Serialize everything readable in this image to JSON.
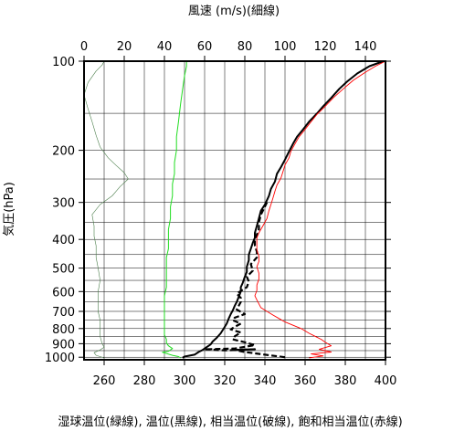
{
  "chart_data": {
    "type": "line",
    "title": "",
    "top_axis_label": "風速 (m/s)(細線)",
    "left_axis_label": "気圧(hPa)",
    "bottom_axis_label": "湿球温位(緑線), 温位(黒線), 相当温位(破線), 飽和相当温位(赤線)",
    "top_axis": {
      "range": [
        0,
        150
      ],
      "ticks": [
        0,
        20,
        40,
        60,
        80,
        100,
        120,
        140
      ]
    },
    "bottom_axis": {
      "range": [
        250,
        400
      ],
      "ticks": [
        260,
        280,
        300,
        320,
        340,
        360,
        380,
        400
      ]
    },
    "y_axis": {
      "scale": "log",
      "range": [
        1020,
        100
      ],
      "ticks": [
        100,
        200,
        300,
        400,
        500,
        600,
        700,
        800,
        900,
        1000
      ],
      "gridlines": [
        100,
        150,
        200,
        250,
        300,
        350,
        400,
        450,
        500,
        550,
        600,
        650,
        700,
        750,
        800,
        850,
        900,
        950,
        1000
      ]
    },
    "grid": true,
    "series": [
      {
        "key": "wind_speed",
        "axis": "top",
        "color": "#4a7d4a",
        "style": "solid",
        "width": 0.6,
        "points": [
          [
            10,
            1005
          ],
          [
            6,
            985
          ],
          [
            5,
            965
          ],
          [
            8,
            945
          ],
          [
            10,
            925
          ],
          [
            9,
            900
          ],
          [
            8,
            850
          ],
          [
            8,
            800
          ],
          [
            8,
            750
          ],
          [
            7,
            700
          ],
          [
            7,
            650
          ],
          [
            7,
            600
          ],
          [
            8,
            550
          ],
          [
            7,
            500
          ],
          [
            6,
            460
          ],
          [
            6,
            420
          ],
          [
            5,
            390
          ],
          [
            5,
            360
          ],
          [
            4,
            330
          ],
          [
            8,
            305
          ],
          [
            14,
            285
          ],
          [
            18,
            265
          ],
          [
            22,
            250
          ],
          [
            20,
            238
          ],
          [
            16,
            225
          ],
          [
            12,
            212
          ],
          [
            8,
            195
          ],
          [
            6,
            178
          ],
          [
            4,
            160
          ],
          [
            2,
            145
          ],
          [
            0,
            130
          ],
          [
            2,
            118
          ],
          [
            6,
            108
          ],
          [
            9,
            103
          ],
          [
            10,
            100
          ]
        ]
      },
      {
        "key": "wet_bulb_potential_temperature",
        "axis": "bottom",
        "color": "#22dd22",
        "style": "solid",
        "width": 1.0,
        "points": [
          [
            298,
            1005
          ],
          [
            297,
            995
          ],
          [
            294,
            985
          ],
          [
            289,
            962
          ],
          [
            292,
            955
          ],
          [
            294,
            935
          ],
          [
            292,
            915
          ],
          [
            291,
            895
          ],
          [
            291,
            870
          ],
          [
            290,
            840
          ],
          [
            290,
            800
          ],
          [
            290,
            770
          ],
          [
            290,
            740
          ],
          [
            290,
            710
          ],
          [
            290,
            680
          ],
          [
            290,
            650
          ],
          [
            290,
            620
          ],
          [
            291,
            580
          ],
          [
            291,
            550
          ],
          [
            291,
            520
          ],
          [
            291,
            490
          ],
          [
            291,
            460
          ],
          [
            292,
            430
          ],
          [
            292,
            400
          ],
          [
            292,
            370
          ],
          [
            293,
            340
          ],
          [
            293,
            310
          ],
          [
            294,
            285
          ],
          [
            294,
            260
          ],
          [
            295,
            240
          ],
          [
            295,
            220
          ],
          [
            296,
            200
          ],
          [
            296,
            180
          ],
          [
            297,
            160
          ],
          [
            298,
            140
          ],
          [
            299,
            125
          ],
          [
            300,
            112
          ],
          [
            301,
            104
          ],
          [
            301,
            100
          ]
        ]
      },
      {
        "key": "potential_temperature",
        "axis": "bottom",
        "color": "#000000",
        "style": "solid",
        "width": 2.0,
        "points": [
          [
            299,
            1005
          ],
          [
            300,
            995
          ],
          [
            305,
            980
          ],
          [
            307,
            960
          ],
          [
            309,
            945
          ],
          [
            311,
            925
          ],
          [
            313,
            905
          ],
          [
            314,
            885
          ],
          [
            316,
            860
          ],
          [
            318,
            830
          ],
          [
            319,
            810
          ],
          [
            320,
            790
          ],
          [
            321,
            770
          ],
          [
            322,
            740
          ],
          [
            323,
            715
          ],
          [
            324,
            695
          ],
          [
            325,
            670
          ],
          [
            326,
            650
          ],
          [
            327,
            625
          ],
          [
            328,
            600
          ],
          [
            328,
            580
          ],
          [
            329,
            560
          ],
          [
            330,
            535
          ],
          [
            331,
            515
          ],
          [
            331,
            495
          ],
          [
            332,
            470
          ],
          [
            332,
            450
          ],
          [
            333,
            430
          ],
          [
            334,
            410
          ],
          [
            335,
            395
          ],
          [
            335,
            380
          ],
          [
            336,
            360
          ],
          [
            337,
            340
          ],
          [
            338,
            320
          ],
          [
            340,
            305
          ],
          [
            341,
            295
          ],
          [
            342,
            285
          ],
          [
            343,
            270
          ],
          [
            345,
            255
          ],
          [
            346,
            240
          ],
          [
            348,
            228
          ],
          [
            350,
            215
          ],
          [
            352,
            202
          ],
          [
            354,
            190
          ],
          [
            356,
            180
          ],
          [
            359,
            170
          ],
          [
            362,
            160
          ],
          [
            366,
            150
          ],
          [
            369,
            142
          ],
          [
            373,
            133
          ],
          [
            377,
            124
          ],
          [
            381,
            117
          ],
          [
            386,
            110
          ],
          [
            392,
            104
          ],
          [
            399,
            100
          ]
        ]
      },
      {
        "key": "equivalent_potential_temperature",
        "axis": "bottom",
        "color": "#000000",
        "style": "dashed",
        "width": 2.2,
        "points": [
          [
            350,
            1000
          ],
          [
            340,
            980
          ],
          [
            330,
            960
          ],
          [
            325,
            945
          ],
          [
            335,
            940
          ],
          [
            320,
            948
          ],
          [
            310,
            940
          ],
          [
            325,
            935
          ],
          [
            335,
            910
          ],
          [
            330,
            890
          ],
          [
            324,
            870
          ],
          [
            325,
            850
          ],
          [
            328,
            825
          ],
          [
            323,
            805
          ],
          [
            325,
            790
          ],
          [
            328,
            770
          ],
          [
            324,
            750
          ],
          [
            325,
            735
          ],
          [
            330,
            715
          ],
          [
            326,
            690
          ],
          [
            327,
            670
          ],
          [
            328,
            650
          ],
          [
            328,
            630
          ],
          [
            326,
            610
          ],
          [
            331,
            580
          ],
          [
            332,
            555
          ],
          [
            331,
            535
          ],
          [
            334,
            510
          ],
          [
            333,
            485
          ],
          [
            336,
            460
          ],
          [
            336,
            440
          ],
          [
            335,
            420
          ],
          [
            335,
            400
          ],
          [
            336,
            385
          ],
          [
            337,
            370
          ],
          [
            337,
            350
          ],
          [
            338,
            330
          ],
          [
            340,
            310
          ],
          [
            341,
            300
          ]
        ]
      },
      {
        "key": "saturated_equivalent_potential_temperature",
        "axis": "bottom",
        "color": "#ff0000",
        "style": "solid",
        "width": 0.9,
        "points": [
          [
            362,
            1005
          ],
          [
            369,
            990
          ],
          [
            363,
            975
          ],
          [
            373,
            960
          ],
          [
            367,
            940
          ],
          [
            373,
            915
          ],
          [
            370,
            890
          ],
          [
            368,
            870
          ],
          [
            365,
            850
          ],
          [
            362,
            830
          ],
          [
            360,
            815
          ],
          [
            358,
            800
          ],
          [
            354,
            780
          ],
          [
            350,
            760
          ],
          [
            347,
            740
          ],
          [
            344,
            720
          ],
          [
            341,
            700
          ],
          [
            338,
            680
          ],
          [
            337,
            660
          ],
          [
            336,
            640
          ],
          [
            335,
            620
          ],
          [
            336,
            595
          ],
          [
            336,
            570
          ],
          [
            337,
            545
          ],
          [
            337,
            520
          ],
          [
            336,
            495
          ],
          [
            337,
            475
          ],
          [
            337,
            455
          ],
          [
            336,
            435
          ],
          [
            336,
            415
          ],
          [
            336,
            395
          ],
          [
            337,
            380
          ],
          [
            339,
            360
          ],
          [
            341,
            340
          ],
          [
            342,
            320
          ],
          [
            343,
            305
          ],
          [
            344,
            290
          ],
          [
            345,
            275
          ],
          [
            346,
            262
          ],
          [
            348,
            248
          ],
          [
            349,
            236
          ],
          [
            350,
            224
          ],
          [
            352,
            212
          ],
          [
            353,
            201
          ],
          [
            355,
            190
          ],
          [
            357,
            180
          ],
          [
            360,
            170
          ],
          [
            363,
            160
          ],
          [
            366,
            151
          ],
          [
            370,
            142
          ],
          [
            374,
            133
          ],
          [
            379,
            124
          ],
          [
            384,
            116
          ],
          [
            390,
            109
          ],
          [
            395,
            104
          ],
          [
            400,
            100
          ]
        ]
      }
    ]
  }
}
